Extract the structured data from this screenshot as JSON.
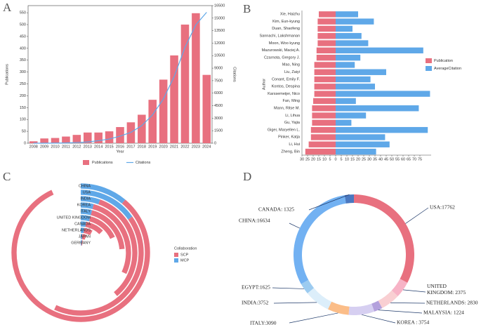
{
  "chart_data": [
    {
      "type": "bar",
      "panel": "A",
      "categories": [
        "2008",
        "2009",
        "2010",
        "2011",
        "2012",
        "2013",
        "2014",
        "2015",
        "2016",
        "2017",
        "2018",
        "2019",
        "2020",
        "2021",
        "2022",
        "2023",
        "2024"
      ],
      "series": [
        {
          "name": "Publications",
          "type": "bar",
          "color": "#e8707f",
          "values": [
            8,
            20,
            22,
            28,
            35,
            45,
            45,
            50,
            68,
            88,
            120,
            183,
            268,
            370,
            500,
            548,
            288
          ]
        },
        {
          "name": "Citations",
          "type": "line",
          "axis": "y2",
          "color": "#5fa8e8",
          "values": [
            0,
            0,
            10,
            30,
            80,
            150,
            300,
            500,
            850,
            1300,
            2100,
            3400,
            5300,
            8000,
            11500,
            14200,
            15700
          ]
        }
      ],
      "ylim": [
        0,
        580
      ],
      "yticks": [
        0,
        50,
        100,
        150,
        200,
        250,
        300,
        350,
        400,
        450,
        500,
        550
      ],
      "y2lim": [
        0,
        16500
      ],
      "y2ticks": [
        0,
        1500,
        3000,
        4500,
        6000,
        7500,
        9000,
        10500,
        12000,
        13500,
        15000,
        16500
      ],
      "xlabel": "Year",
      "ylabel": "Publications",
      "y2label": "Citations"
    },
    {
      "type": "butterfly",
      "panel": "B",
      "categories": [
        "Xie, Haizhu",
        "Kim, Eun-kyung",
        "Duan, Shaofeng",
        "Sannachi, Lakshmanan",
        "Moon, Woo kyung",
        "Mazurowski, Maciej A.",
        "Czarnota, Gregory J.",
        "Mao, Ning",
        "Liu, Zaiyi",
        "Conant, Emily F.",
        "Kontos, Despina",
        "Karssemeijer, Nico",
        "Fan, Ming",
        "Mann, Ritse M.",
        "Li, Lihua",
        "Gu, Yajia",
        "Giger, Maryellen L.",
        "Pinker, Katja",
        "Li, Hui",
        "Zheng, Bin"
      ],
      "series": [
        {
          "name": "Publication",
          "color": "#e8707f",
          "values": [
            15,
            16,
            16,
            16,
            16,
            17,
            17,
            19,
            19,
            19,
            19,
            19,
            20,
            21,
            21,
            21,
            22,
            22,
            24,
            27
          ]
        },
        {
          "name": "AverageCitation",
          "color": "#5fa8e8",
          "values": [
            20,
            34,
            15,
            23,
            29,
            78,
            22,
            17,
            45,
            31,
            35,
            84,
            18,
            74,
            27,
            14,
            82,
            44,
            48,
            36
          ]
        }
      ],
      "xlim": [
        -30,
        85
      ],
      "xticks": [
        {
          "value": -30,
          "label": "30"
        },
        {
          "value": -25,
          "label": "25"
        },
        {
          "value": -20,
          "label": "20"
        },
        {
          "value": -15,
          "label": "15"
        },
        {
          "value": -10,
          "label": "10"
        },
        {
          "value": -5,
          "label": "5"
        },
        0,
        5,
        10,
        15,
        20,
        25,
        30,
        35,
        40,
        45,
        50,
        55,
        60,
        65,
        70,
        75
      ],
      "ylabel": "Author"
    },
    {
      "type": "radial_bar",
      "panel": "C",
      "categories": [
        "CHINA",
        "USA",
        "INDIA",
        "KOREA",
        "ITALY",
        "UNITED KINGDOM",
        "CANADA",
        "NETHERLANDS",
        "JAPAN",
        "GERMANY"
      ],
      "series": [
        {
          "name": "SCP",
          "color": "#e8707f",
          "values": [
            295,
            150,
            120,
            100,
            70,
            50,
            35,
            20,
            12,
            5
          ]
        },
        {
          "name": "MCP",
          "color": "#5fa8e8",
          "values": [
            40,
            55,
            20,
            15,
            15,
            15,
            10,
            8,
            5,
            5
          ]
        }
      ],
      "legend_title": "Collaboration"
    },
    {
      "type": "donut",
      "panel": "D",
      "labels": [
        "USA:17762",
        "UNITED KINGDOM: 2375",
        "NETHERLANDS: 2830",
        "MALAYSIA: 1224",
        "KOREA : 3754",
        "ITALY:3090",
        "INDIA:3752",
        "EGYPT:1625",
        "CHINA:16634",
        "CANADA: 1325"
      ],
      "values": [
        17762,
        2375,
        2830,
        1224,
        3754,
        3090,
        3752,
        1625,
        16634,
        1325
      ],
      "colors": [
        "#e8707f",
        "#f7b3c6",
        "#f9cfd2",
        "#b3a0dc",
        "#d6cff1",
        "#fbbd88",
        "#dceefa",
        "#9ccbf0",
        "#72b1f2",
        "#4a78c0"
      ]
    }
  ]
}
